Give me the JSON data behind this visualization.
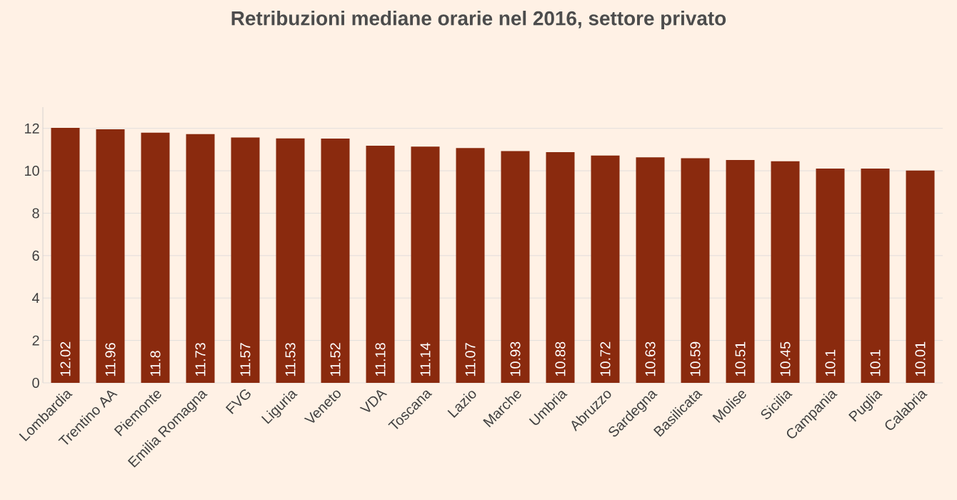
{
  "chart_data": {
    "type": "bar",
    "title": "Retribuzioni mediane orarie nel 2016, settore privato",
    "categories": [
      "Lombardia",
      "Trentino AA",
      "Piemonte",
      "Emilia Romagna",
      "FVG",
      "Liguria",
      "Veneto",
      "VDA",
      "Toscana",
      "Lazio",
      "Marche",
      "Umbria",
      "Abruzzo",
      "Sardegna",
      "Basilicata",
      "Molise",
      "Sicilia",
      "Campania",
      "Puglia",
      "Calabria"
    ],
    "values": [
      12.02,
      11.96,
      11.8,
      11.73,
      11.57,
      11.53,
      11.52,
      11.18,
      11.14,
      11.07,
      10.93,
      10.88,
      10.72,
      10.63,
      10.59,
      10.51,
      10.45,
      10.1,
      10.1,
      10.01
    ],
    "color": "#8a2a0e",
    "data_labels": true,
    "grid": "y",
    "ylim": [
      0,
      13
    ],
    "yticks": [
      0,
      2,
      4,
      6,
      8,
      10,
      12
    ]
  }
}
